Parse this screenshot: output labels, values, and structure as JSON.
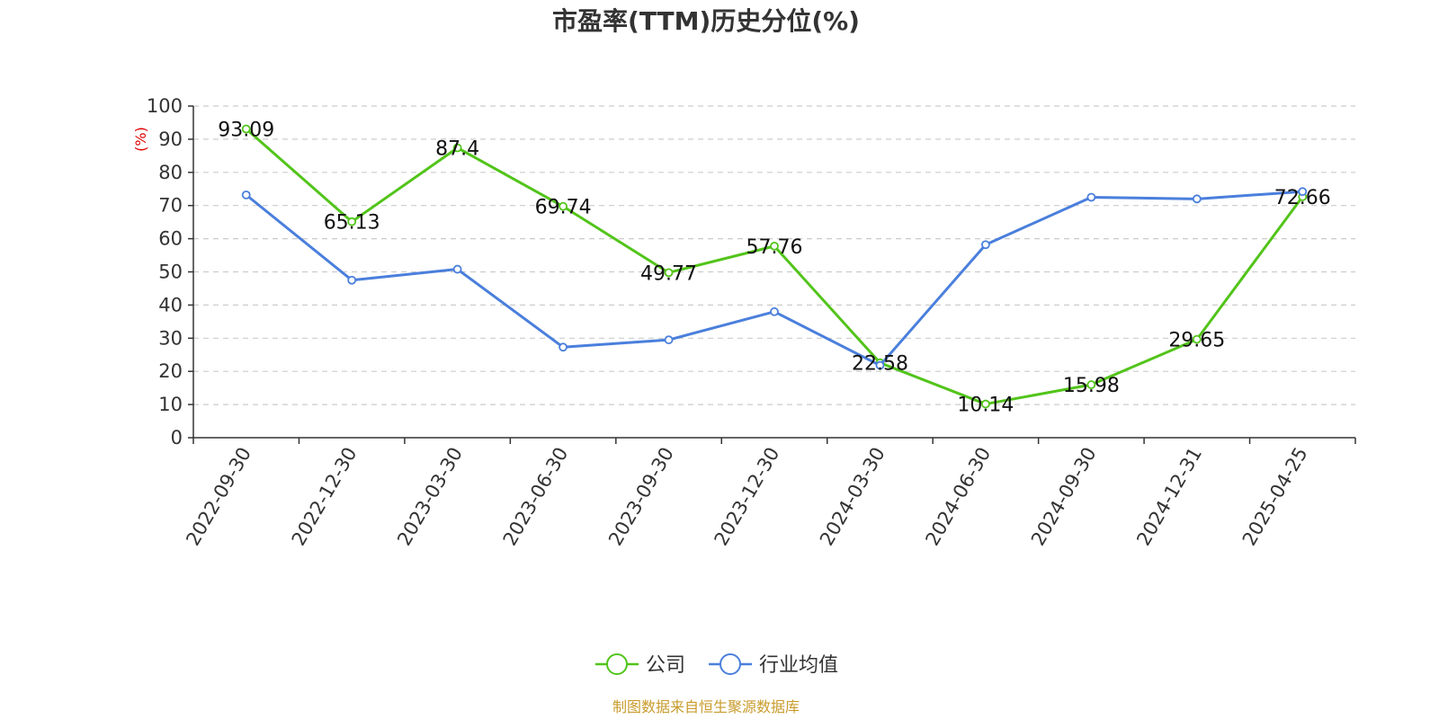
{
  "chart_data": {
    "type": "line",
    "title": "市盈率(TTM)历史分位(%)",
    "yunit": "(%)",
    "ylim": [
      0,
      100
    ],
    "yticks": [
      0,
      10,
      20,
      30,
      40,
      50,
      60,
      70,
      80,
      90,
      100
    ],
    "grid": true,
    "legend_position": "bottom-center",
    "categories": [
      "2022-09-30",
      "2022-12-30",
      "2023-03-30",
      "2023-06-30",
      "2023-09-30",
      "2023-12-30",
      "2024-03-30",
      "2024-06-30",
      "2024-09-30",
      "2024-12-31",
      "2025-04-25"
    ],
    "series": [
      {
        "name": "公司",
        "color": "#52c41a",
        "values": [
          93.09,
          65.13,
          87.4,
          69.74,
          49.77,
          57.76,
          22.58,
          10.14,
          15.98,
          29.65,
          72.66
        ],
        "labels": [
          "93.09",
          "65.13",
          "87.4",
          "69.74",
          "49.77",
          "57.76",
          "22.58",
          "10.14",
          "15.98",
          "29.65",
          "72.66"
        ]
      },
      {
        "name": "行业均值",
        "color": "#4a7fdc",
        "values": [
          73.2,
          47.5,
          50.8,
          27.3,
          29.5,
          38.0,
          21.8,
          58.2,
          72.5,
          72.0,
          74.2
        ]
      }
    ],
    "source": "制图数据来自恒生聚源数据库"
  }
}
